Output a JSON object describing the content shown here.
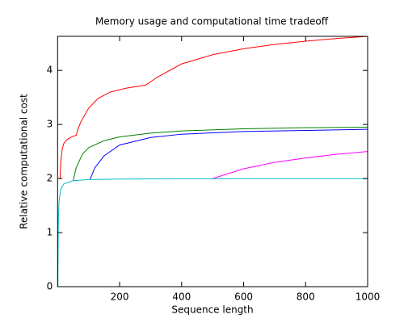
{
  "chart_data": {
    "type": "line",
    "title": "Memory usage and computational time tradeoff",
    "x_label": "Sequence length",
    "y_label": "Relative computational cost",
    "xlim": [
      0,
      1000
    ],
    "ylim": [
      0,
      4.63
    ],
    "xticks": [
      200,
      400,
      600,
      800,
      1000
    ],
    "yticks": [
      0,
      1,
      2,
      3,
      4
    ],
    "series": [
      {
        "color": "#ff0000",
        "x": [
          8,
          10,
          15,
          20,
          30,
          45,
          60,
          65,
          75,
          100,
          130,
          170,
          220,
          285,
          320,
          400,
          500,
          600,
          700,
          800,
          900,
          1000
        ],
        "values": [
          2.0,
          2.3,
          2.55,
          2.65,
          2.72,
          2.77,
          2.8,
          2.9,
          3.05,
          3.3,
          3.48,
          3.6,
          3.67,
          3.73,
          3.87,
          4.12,
          4.29,
          4.4,
          4.48,
          4.54,
          4.59,
          4.63
        ]
      },
      {
        "color": "#008000",
        "x": [
          50,
          60,
          80,
          100,
          150,
          200,
          300,
          400,
          600,
          800,
          1000
        ],
        "values": [
          1.96,
          2.2,
          2.45,
          2.57,
          2.7,
          2.77,
          2.84,
          2.88,
          2.92,
          2.94,
          2.95
        ]
      },
      {
        "color": "#0000ff",
        "x": [
          105,
          120,
          150,
          200,
          300,
          400,
          600,
          800,
          1000
        ],
        "values": [
          1.99,
          2.2,
          2.42,
          2.62,
          2.76,
          2.82,
          2.87,
          2.89,
          2.91
        ]
      },
      {
        "color": "#ff00ff",
        "x": [
          500,
          600,
          700,
          800,
          900,
          1000
        ],
        "values": [
          2.0,
          2.18,
          2.3,
          2.38,
          2.45,
          2.5
        ]
      },
      {
        "color": "#00bfbf",
        "x": [
          1,
          2,
          3,
          5,
          10,
          20,
          50,
          100,
          200,
          400,
          600,
          800,
          1000
        ],
        "values": [
          0,
          1,
          1.33,
          1.6,
          1.8,
          1.9,
          1.96,
          1.98,
          1.99,
          1.995,
          1.997,
          1.998,
          1.998
        ]
      }
    ]
  }
}
